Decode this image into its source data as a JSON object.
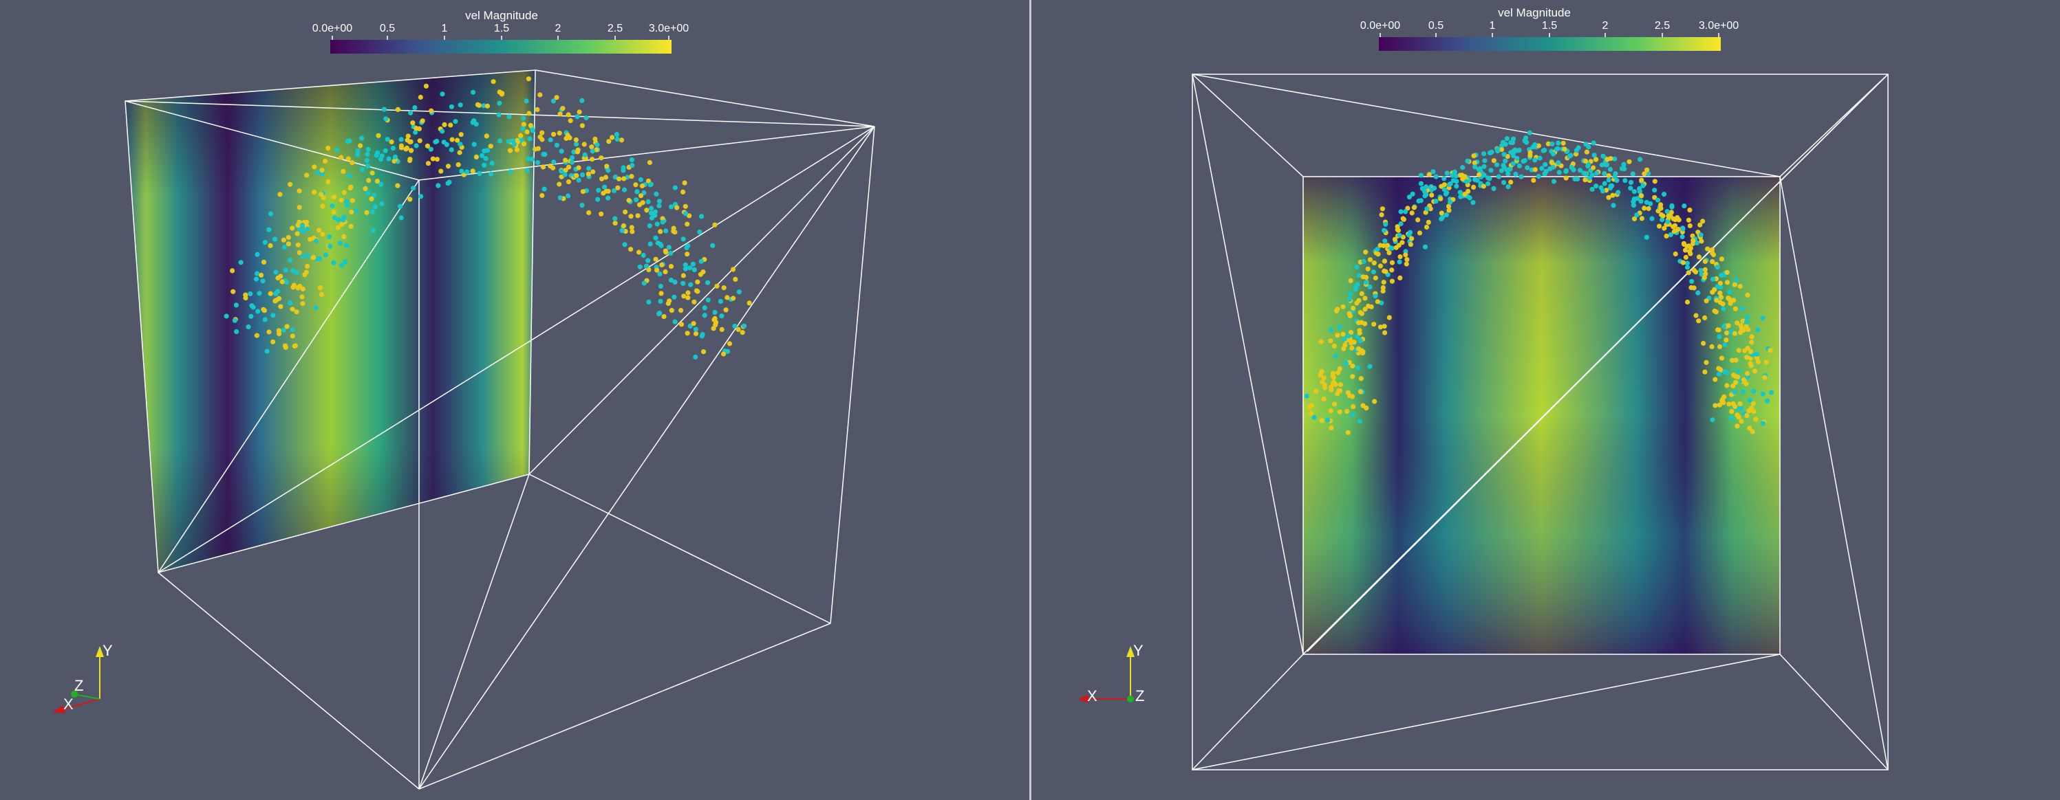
{
  "colorbar": {
    "title": "vel Magnitude",
    "min_label": "0.0e+00",
    "max_label": "3.0e+00",
    "ticks_left": [
      "0.5",
      "1",
      "1.5",
      "2",
      "2.5"
    ],
    "ticks_right": [
      "0.5",
      "1",
      "1.5",
      "2",
      "2.5"
    ],
    "colormap": "viridis",
    "range": [
      0,
      3
    ]
  },
  "orientation_axes": {
    "left": {
      "labels": [
        "Y",
        "Z",
        "X"
      ]
    },
    "right": {
      "labels": [
        "Y",
        "X",
        "Z"
      ]
    }
  },
  "colors": {
    "background": "#525669",
    "particle_cyan": "#16c6c8",
    "particle_yellow": "#e9c81a",
    "outline": "#ffffff",
    "axis_x": "#d01818",
    "axis_y": "#e8e020",
    "axis_z": "#20b020"
  }
}
